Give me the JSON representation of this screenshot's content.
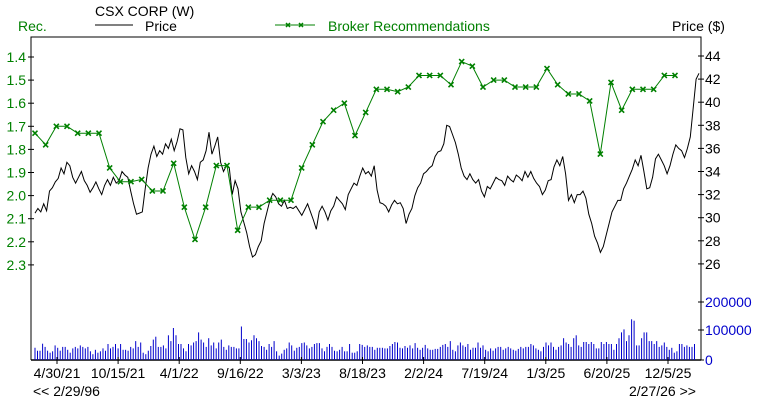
{
  "header": {
    "title": "CSX CORP (W)",
    "left_axis_label": "Rec.",
    "right_axis_label": "Price ($)",
    "legend_price": "Price",
    "legend_broker": "Broker Recommendations"
  },
  "footer": {
    "start_date": "<< 2/29/96",
    "end_date": "2/27/26 >>"
  },
  "colors": {
    "price": "#000000",
    "recommendations": "#008000",
    "volume": "#0000cc",
    "axis": "#000000"
  },
  "chart_data": {
    "type": "line",
    "title": "CSX CORP (W)",
    "xlabel": "",
    "ylabel_left": "Rec.",
    "ylabel_right": "Price ($)",
    "x_tick_labels": [
      "4/30/21",
      "10/15/21",
      "4/1/22",
      "9/16/22",
      "3/3/23",
      "8/18/23",
      "2/2/24",
      "7/19/24",
      "1/3/25",
      "6/20/25",
      "12/5/25"
    ],
    "left_axis": {
      "label": "Rec.",
      "ticks": [
        1.4,
        1.5,
        1.6,
        1.7,
        1.8,
        1.9,
        2.0,
        2.1,
        2.2,
        2.3
      ],
      "inverted": true
    },
    "right_axis": {
      "label": "Price ($)",
      "ticks": [
        26,
        28,
        30,
        32,
        34,
        36,
        38,
        40,
        42,
        44
      ],
      "range": [
        26,
        44
      ]
    },
    "volume_axis": {
      "ticks": [
        0,
        100000,
        200000
      ]
    },
    "legend": [
      "Price",
      "Broker Recommendations"
    ],
    "grid": false,
    "series": [
      {
        "name": "Price",
        "axis": "right",
        "values": [
          30.4,
          30.8,
          30.5,
          31.2,
          30.6,
          32.3,
          32.6,
          33.1,
          33.4,
          34.3,
          33.8,
          34.8,
          34.5,
          33.5,
          33.0,
          33.5,
          34.0,
          33.2,
          32.8,
          32.2,
          32.6,
          33.1,
          32.5,
          32.0,
          32.8,
          33.3,
          32.8,
          33.5,
          33.0,
          33.2,
          34.0,
          33.7,
          33.5,
          32.3,
          31.2,
          30.3,
          30.4,
          30.5,
          32.5,
          34.3,
          35.5,
          36.2,
          35.3,
          35.8,
          35.5,
          36.4,
          36.0,
          36.8,
          35.8,
          36.6,
          37.7,
          37.6,
          35.2,
          33.8,
          34.5,
          34.0,
          33.3,
          34.8,
          35.0,
          35.8,
          37.4,
          35.5,
          36.2,
          37.0,
          34.8,
          34.0,
          34.5,
          34.3,
          32.0,
          33.2,
          32.5,
          30.5,
          29.6,
          28.7,
          27.5,
          26.6,
          26.8,
          27.5,
          28.0,
          29.5,
          30.5,
          31.5,
          32.1,
          31.8,
          31.2,
          31.0,
          31.5,
          30.8,
          30.9,
          30.8,
          31.0,
          30.6,
          30.2,
          30.7,
          31.2,
          30.5,
          29.8,
          29.0,
          30.5,
          31.0,
          30.5,
          29.8,
          30.6,
          31.0,
          31.8,
          31.5,
          31.2,
          30.7,
          32.0,
          32.5,
          33.0,
          32.8,
          33.6,
          34.3,
          33.8,
          34.0,
          33.6,
          34.5,
          32.4,
          31.3,
          31.2,
          31.0,
          30.5,
          31.1,
          31.5,
          31.2,
          31.3,
          30.8,
          29.5,
          30.3,
          30.8,
          31.9,
          32.6,
          33.0,
          33.8,
          34.0,
          34.3,
          34.5,
          35.3,
          35.7,
          35.8,
          36.4,
          38.0,
          37.9,
          37.2,
          36.5,
          35.5,
          34.3,
          33.6,
          33.3,
          33.8,
          33.3,
          33.0,
          33.3,
          32.3,
          31.8,
          32.7,
          32.5,
          33.0,
          33.5,
          33.3,
          33.2,
          32.8,
          33.6,
          33.3,
          33.1,
          33.7,
          33.5,
          33.2,
          34.0,
          33.5,
          34.0,
          33.4,
          33.0,
          32.7,
          32.0,
          32.4,
          33.2,
          33.3,
          34.4,
          35.0,
          34.5,
          35.3,
          33.8,
          31.5,
          32.0,
          31.3,
          32.0,
          32.0,
          32.3,
          31.7,
          30.3,
          29.5,
          28.4,
          27.8,
          27.0,
          27.5,
          28.5,
          29.5,
          30.5,
          31.0,
          31.5,
          31.5,
          32.5,
          33.0,
          33.6,
          34.2,
          35.0,
          34.5,
          35.4,
          34.0,
          32.5,
          32.6,
          33.5,
          35.1,
          35.5,
          35.0,
          34.5,
          33.8,
          34.5,
          35.5,
          36.3,
          36.0,
          35.8,
          35.2,
          36.0,
          37.0,
          39.5,
          42.0,
          42.5
        ]
      },
      {
        "name": "Broker Recommendations",
        "axis": "left",
        "values": [
          1.73,
          1.78,
          1.7,
          1.7,
          1.73,
          1.73,
          1.73,
          1.88,
          1.94,
          1.94,
          1.93,
          1.98,
          1.98,
          1.86,
          2.05,
          2.19,
          2.05,
          1.87,
          1.87,
          2.15,
          2.05,
          2.05,
          2.02,
          2.02,
          2.02,
          1.88,
          1.78,
          1.68,
          1.63,
          1.6,
          1.74,
          1.64,
          1.54,
          1.54,
          1.55,
          1.53,
          1.48,
          1.48,
          1.48,
          1.52,
          1.42,
          1.44,
          1.53,
          1.5,
          1.5,
          1.53,
          1.53,
          1.53,
          1.45,
          1.52,
          1.56,
          1.56,
          1.59,
          1.82,
          1.51,
          1.63,
          1.54,
          1.54,
          1.54,
          1.48,
          1.48
        ]
      },
      {
        "name": "Volume",
        "axis": "volume",
        "values": [
          42000,
          32000,
          32000,
          56000,
          45000,
          32000,
          25000,
          30000,
          50000,
          42000,
          32000,
          45000,
          45000,
          35000,
          25000,
          40000,
          45000,
          40000,
          50000,
          45000,
          40000,
          45000,
          30000,
          20000,
          35000,
          25000,
          30000,
          40000,
          32000,
          55000,
          40000,
          45000,
          55000,
          40000,
          55000,
          35000,
          35000,
          32000,
          45000,
          40000,
          65000,
          45000,
          60000,
          25000,
          20000,
          32000,
          48000,
          70000,
          80000,
          45000,
          45000,
          50000,
          40000,
          85000,
          65000,
          110000,
          85000,
          55000,
          55000,
          40000,
          30000,
          55000,
          50000,
          60000,
          65000,
          95000,
          70000,
          60000,
          45000,
          75000,
          50000,
          60000,
          40000,
          60000,
          70000,
          45000,
          35000,
          50000,
          45000,
          45000,
          40000,
          40000,
          115000,
          72000,
          72000,
          60000,
          68000,
          85000,
          75000,
          65000,
          48000,
          45000,
          35000,
          55000,
          45000,
          65000,
          30000,
          15000,
          22000,
          35000,
          40000,
          60000,
          50000,
          32000,
          42000,
          45000,
          58000,
          60000,
          50000,
          40000,
          45000,
          55000,
          58000,
          58000,
          40000,
          30000,
          45000,
          55000,
          45000,
          32000,
          30000,
          35000,
          45000,
          30000,
          30000,
          55000,
          25000,
          25000,
          30000,
          55000,
          52000,
          45000,
          50000,
          45000,
          45000,
          35000,
          42000,
          42000,
          42000,
          40000,
          40000,
          48000,
          55000,
          62000,
          60000,
          42000,
          40000,
          48000,
          42000,
          50000,
          40000,
          58000,
          42000,
          35000,
          42000,
          52000,
          40000,
          35000,
          35000,
          38000,
          38000,
          45000,
          52000,
          55000,
          45000,
          65000,
          35000,
          30000,
          50000,
          60000,
          50000,
          45000,
          55000,
          35000,
          42000,
          42000,
          60000,
          42000,
          50000,
          35000,
          30000,
          40000,
          32000,
          40000,
          45000,
          45000,
          35000,
          40000,
          45000,
          40000,
          35000,
          32000,
          38000,
          45000,
          40000,
          45000,
          45000,
          55000,
          50000,
          40000,
          35000,
          30000,
          45000,
          60000,
          50000,
          60000,
          45000,
          35000,
          45000,
          50000,
          75000,
          60000,
          55000,
          45000,
          75000,
          85000,
          50000,
          45000,
          62000,
          62000,
          55000,
          62000,
          55000,
          40000,
          40000,
          62000,
          55000,
          62000,
          55000,
          55000,
          35000,
          55000,
          75000,
          95000,
          105000,
          65000,
          85000,
          140000,
          135000,
          50000,
          50000,
          75000,
          95000,
          95000,
          65000,
          65000,
          55000,
          65000,
          45000,
          50000,
          60000,
          45000,
          35000,
          42000,
          25000,
          30000,
          55000,
          55000,
          45000,
          50000,
          45000,
          45000,
          55000
        ]
      }
    ]
  }
}
